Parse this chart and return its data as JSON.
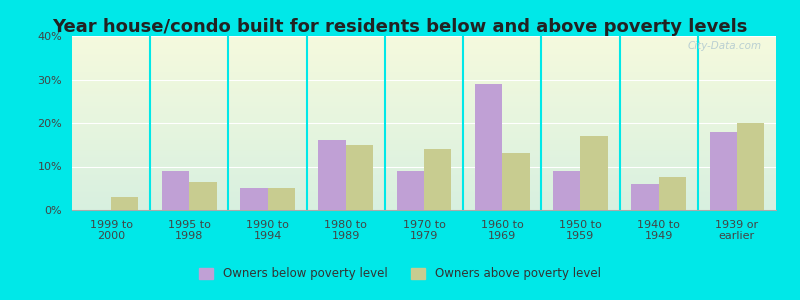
{
  "title": "Year house/condo built for residents below and above poverty levels",
  "categories": [
    "1999 to\n2000",
    "1995 to\n1998",
    "1990 to\n1994",
    "1980 to\n1989",
    "1970 to\n1979",
    "1960 to\n1969",
    "1950 to\n1959",
    "1940 to\n1949",
    "1939 or\nearlier"
  ],
  "below_poverty": [
    0,
    9,
    5,
    16,
    9,
    29,
    9,
    6,
    18
  ],
  "above_poverty": [
    3,
    6.5,
    5,
    15,
    14,
    13,
    17,
    7.5,
    20
  ],
  "below_color": "#c0a0d5",
  "above_color": "#c8cc90",
  "background_color": "#00e8e8",
  "grad_top": "#d8f0e0",
  "grad_bottom": "#f5fadd",
  "ylim": [
    0,
    40
  ],
  "yticks": [
    0,
    10,
    20,
    30,
    40
  ],
  "legend_below": "Owners below poverty level",
  "legend_above": "Owners above poverty level",
  "title_fontsize": 13,
  "tick_fontsize": 8.0,
  "bar_width": 0.35
}
